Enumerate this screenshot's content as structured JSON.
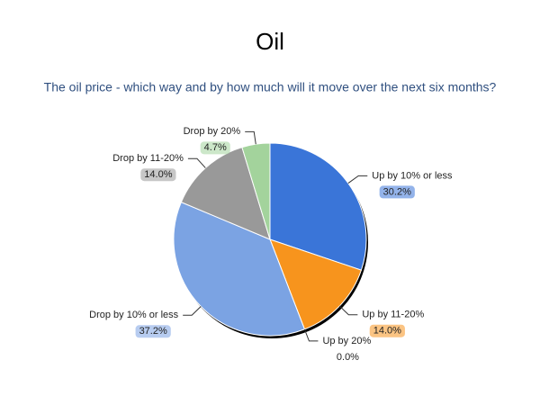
{
  "chart_data": {
    "type": "pie",
    "title": "Oil",
    "subtitle": "The oil price - which way and by how much will it move over the next six months?",
    "categories": [
      "Up by 10% or less",
      "Up by 11-20%",
      "Up by 20%",
      "Drop by 10% or less",
      "Drop by 11-20%",
      "Drop by 20%"
    ],
    "values": [
      30.2,
      14.0,
      0.0,
      37.2,
      14.0,
      4.7
    ],
    "value_labels": [
      "30.2%",
      "14.0%",
      "0.0%",
      "37.2%",
      "14.0%",
      "4.7%"
    ],
    "colors": [
      "#3a75d8",
      "#f7941d",
      null,
      "#7ba3e3",
      "#999999",
      "#a3d39c"
    ]
  }
}
